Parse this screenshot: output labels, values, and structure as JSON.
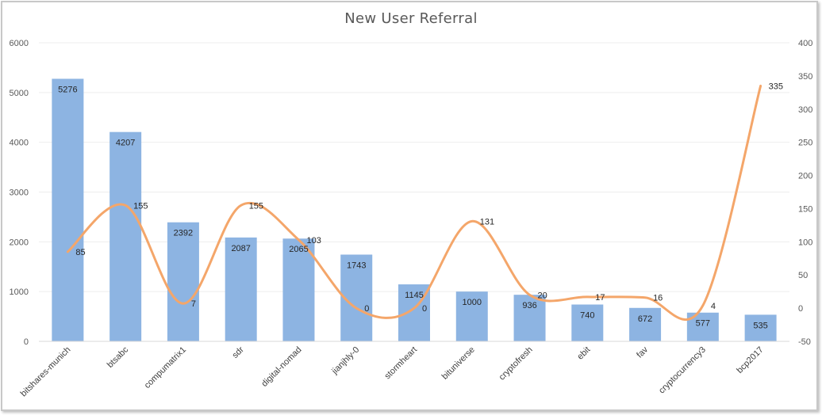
{
  "chart_data": {
    "type": "bar",
    "title": "New User Referral",
    "categories": [
      "bitshares-munich",
      "btsabc",
      "compumatrix1",
      "sdr",
      "digital-nomad",
      "jianjhly-0",
      "stormheart",
      "bituniverse",
      "cryptofresh",
      "ebit",
      "fav",
      "cryptocurrency3",
      "bcp2017"
    ],
    "series": [
      {
        "type": "bar",
        "axis": "left",
        "values": [
          5276,
          4207,
          2392,
          2087,
          2065,
          1743,
          1145,
          1000,
          936,
          740,
          672,
          577,
          535
        ],
        "labels": [
          "5276",
          "4207",
          "2392",
          "2087",
          "2065",
          "1743",
          "1145",
          "1000",
          "936",
          "740",
          "672",
          "577",
          "535"
        ],
        "color": "#8db4e2"
      },
      {
        "type": "line",
        "axis": "right",
        "smooth": true,
        "values": [
          85,
          155,
          7,
          155,
          103,
          0,
          0,
          131,
          20,
          17,
          16,
          4,
          335
        ],
        "labels": [
          "85",
          "155",
          "7",
          "155",
          "103",
          "0",
          "0",
          "131",
          "20",
          "17",
          "16",
          "4",
          "335"
        ],
        "color": "#f4a66a"
      }
    ],
    "y_left": {
      "min": 0,
      "max": 6000,
      "ticks": [
        "0",
        "1000",
        "2000",
        "3000",
        "4000",
        "5000",
        "6000"
      ]
    },
    "y_right": {
      "min": -50,
      "max": 400,
      "ticks": [
        "-50",
        "0",
        "50",
        "100",
        "150",
        "200",
        "250",
        "300",
        "350",
        "400"
      ]
    },
    "grid": true,
    "legend": "none",
    "xlabel": "",
    "ylabel": ""
  }
}
